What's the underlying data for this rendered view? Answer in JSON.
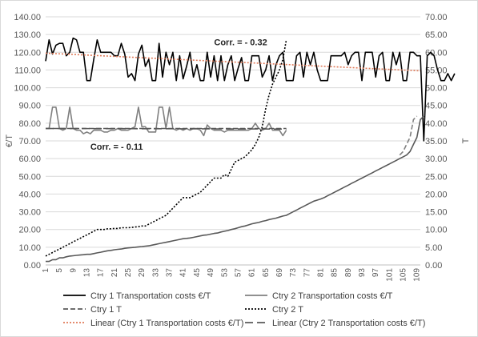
{
  "chart_data": {
    "type": "line",
    "title": "",
    "ylabel": "€/T",
    "y2label": "T",
    "ylim": [
      0,
      140
    ],
    "y2lim": [
      0,
      70
    ],
    "y_ticks": [
      "0.00",
      "10.00",
      "20.00",
      "30.00",
      "40.00",
      "50.00",
      "60.00",
      "70.00",
      "80.00",
      "90.00",
      "100.00",
      "110.00",
      "120.00",
      "130.00",
      "140.00"
    ],
    "y2_ticks": [
      "0.00",
      "5.00",
      "10.00",
      "15.00",
      "20.00",
      "25.00",
      "30.00",
      "35.00",
      "40.00",
      "45.00",
      "50.00",
      "55.00",
      "60.00",
      "65.00",
      "70.00"
    ],
    "x_ticks": [
      "1",
      "5",
      "9",
      "13",
      "17",
      "21",
      "25",
      "29",
      "33",
      "37",
      "41",
      "45",
      "49",
      "53",
      "57",
      "61",
      "65",
      "69",
      "73",
      "77",
      "81",
      "85",
      "89",
      "93",
      "97",
      "101",
      "105",
      "109"
    ],
    "x_range": [
      1,
      110
    ],
    "grid": true,
    "legend_position": "bottom",
    "annotations": [
      {
        "text": "Corr. = - 0.32",
        "x": 50,
        "y": 124
      },
      {
        "text": "Corr. = - 0.11",
        "x": 14,
        "y": 65
      }
    ],
    "series": [
      {
        "name": "Ctry 1 Transportation costs €/T",
        "axis": "left",
        "color": "#000000",
        "style": "solid",
        "x_start": 1,
        "values": [
          115,
          127,
          119,
          124,
          125,
          125,
          118,
          120,
          128,
          127,
          120,
          120,
          104,
          104,
          116,
          127,
          120,
          120,
          120,
          120,
          118,
          118,
          125,
          119,
          106,
          108,
          104,
          119,
          124,
          112,
          116,
          104,
          104,
          125,
          106,
          120,
          113,
          120,
          104,
          118,
          105,
          112,
          120,
          106,
          113,
          104,
          104,
          120,
          106,
          118,
          104,
          118,
          104,
          113,
          118,
          104,
          111,
          117,
          104,
          104,
          118,
          118,
          118,
          106,
          110,
          118,
          104,
          113,
          118,
          120,
          104,
          104,
          104,
          118,
          120,
          106,
          120,
          113,
          120,
          110,
          104,
          104,
          104,
          118,
          118,
          118,
          118,
          120,
          113,
          118,
          120,
          120,
          104,
          120,
          120,
          120,
          106,
          118,
          120,
          104,
          104,
          120,
          113,
          120,
          104,
          104,
          120,
          120,
          118,
          118,
          70,
          118,
          120,
          118,
          110,
          104,
          104,
          108,
          104,
          108
        ]
      },
      {
        "name": "Ctry 2 Transportation costs €/T",
        "axis": "left",
        "color": "#808080",
        "style": "solid",
        "x_start": 1,
        "values": [
          77,
          77,
          89,
          89,
          77,
          76,
          77,
          89,
          77,
          76,
          76,
          74,
          75,
          74,
          76,
          76,
          76,
          75,
          75,
          76,
          76,
          77,
          76,
          76,
          76,
          77,
          78,
          89,
          78,
          78,
          75,
          75,
          75,
          89,
          89,
          77,
          89,
          77,
          76,
          77,
          76,
          77,
          76,
          77,
          77,
          76,
          73,
          79,
          77,
          76,
          76,
          76,
          75,
          76,
          76,
          76,
          76,
          76,
          76,
          76,
          77,
          80,
          77,
          76,
          77,
          80,
          76,
          76,
          76,
          73,
          76
        ]
      },
      {
        "name": "Ctry 1 T",
        "axis": "right",
        "color": "#595959",
        "style": "dashed",
        "x_start": 1,
        "values": [
          38.5,
          38.5,
          38.5,
          38.5,
          38.5,
          38.5,
          38.5,
          38.5,
          38.5,
          38.5,
          38.5,
          38.5,
          38.5,
          38.5,
          38.5,
          38.5,
          38.5,
          38.5,
          38.5,
          38.5,
          38.5,
          38.5,
          38.5,
          38.5,
          38.5,
          38.5,
          38.5,
          38.5,
          38.5,
          38.5,
          38.5,
          38.5,
          38.5,
          38.5,
          38.5,
          38.5,
          38.5,
          38.5,
          38.5,
          38.5,
          38.5,
          38.5,
          38.5,
          38.5,
          38.5,
          38.5,
          38.5,
          38.5,
          38.5,
          38.5,
          38.5,
          38.5,
          38.5,
          38.5,
          38.5,
          38.5,
          38.5,
          38.5,
          38.5,
          38.5,
          38.5,
          38.5,
          38.5,
          38.5,
          38.5,
          38.5,
          38.5,
          38.5,
          38.5,
          38.5,
          38.5
        ]
      },
      {
        "name": "Ctry 2 T",
        "axis": "right",
        "color": "#000000",
        "style": "dotted",
        "x_start": 1,
        "values": [
          2.5,
          3,
          3.5,
          4,
          4.5,
          5,
          5.5,
          6,
          6.5,
          7,
          7.5,
          8,
          8.5,
          9,
          9.5,
          10,
          10,
          10,
          10.2,
          10.2,
          10.3,
          10.3,
          10.5,
          10.5,
          10.5,
          10.6,
          10.7,
          10.8,
          11,
          11,
          11.5,
          12,
          12.5,
          13,
          13.5,
          14,
          15,
          16,
          17,
          18,
          19,
          19,
          19,
          19.5,
          20,
          20.5,
          21.5,
          22.5,
          23.5,
          24.5,
          24.5,
          24.5,
          25.5,
          25,
          27,
          29,
          29.5,
          30,
          30.5,
          31.5,
          32.5,
          34,
          36,
          39,
          44,
          48,
          51,
          53,
          55,
          58,
          63.5
        ]
      },
      {
        "name": "Linear (Ctry 1 Transportation costs €/T)",
        "axis": "left",
        "color": "#e07b5a",
        "style": "dotted",
        "trend": [
          1,
          119.5,
          110,
          109.5
        ]
      },
      {
        "name": "Linear (Ctry 2 Transportation costs €/T)",
        "axis": "left",
        "color": "#595959",
        "style": "longdash",
        "trend": [
          1,
          77,
          71,
          76.7
        ]
      },
      {
        "name": "",
        "axis": "right",
        "color": "#595959",
        "style": "solid",
        "x_start": 1,
        "values": [
          1,
          1,
          1.5,
          1.5,
          2,
          2,
          2.3,
          2.5,
          2.6,
          2.7,
          2.8,
          2.9,
          3,
          3,
          3.2,
          3.4,
          3.6,
          3.8,
          4,
          4.1,
          4.3,
          4.4,
          4.5,
          4.7,
          4.8,
          4.9,
          5,
          5.1,
          5.2,
          5.3,
          5.4,
          5.6,
          5.8,
          6,
          6.2,
          6.4,
          6.6,
          6.8,
          7,
          7.2,
          7.4,
          7.5,
          7.6,
          7.8,
          8,
          8.2,
          8.4,
          8.5,
          8.7,
          8.9,
          9,
          9.3,
          9.5,
          9.7,
          10,
          10.2,
          10.5,
          10.8,
          11,
          11.3,
          11.6,
          11.8,
          12,
          12.3,
          12.5,
          12.8,
          13,
          13.2,
          13.5,
          13.8,
          14,
          14.5,
          15,
          15.5,
          16,
          16.5,
          17,
          17.5,
          18,
          18.3,
          18.6,
          19,
          19.5,
          20,
          20.5,
          21,
          21.5,
          22,
          22.5,
          23,
          23.5,
          24,
          24.5,
          25,
          25.5,
          26,
          26.5,
          27,
          27.5,
          28,
          28.5,
          29,
          29.5,
          30,
          30.5,
          31,
          32,
          34,
          36,
          41,
          42
        ]
      },
      {
        "name": "",
        "axis": "right",
        "color": "#808080",
        "style": "dashed",
        "x_start": 104,
        "values": [
          31,
          32,
          34,
          36,
          41,
          42
        ]
      }
    ]
  },
  "legend": [
    {
      "label": "Ctry 1 Transportation costs €/T",
      "color": "#000000",
      "style": "solid"
    },
    {
      "label": "Ctry 2 Transportation costs €/T",
      "color": "#808080",
      "style": "solid"
    },
    {
      "label": "Ctry 1 T",
      "color": "#595959",
      "style": "dashed"
    },
    {
      "label": "Ctry 2 T",
      "color": "#000000",
      "style": "dotted"
    },
    {
      "label": "Linear (Ctry 1 Transportation costs €/T)",
      "color": "#e07b5a",
      "style": "dotted"
    },
    {
      "label": "Linear (Ctry 2 Transportation costs €/T)",
      "color": "#595959",
      "style": "longdash"
    }
  ]
}
